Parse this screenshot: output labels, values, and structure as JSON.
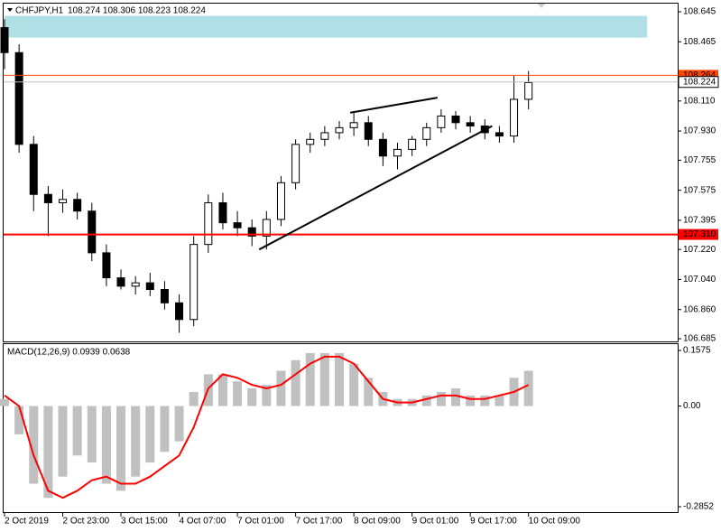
{
  "chart_data": [
    {
      "type": "candlestick",
      "title": "CHFJPY,H1",
      "subtitle": "108.274 108.306 108.223 108.224",
      "x": [
        0,
        4,
        8,
        12,
        16,
        20,
        24,
        28,
        32,
        36,
        40,
        44,
        48,
        52,
        56,
        60,
        64,
        68,
        72,
        76,
        80,
        84,
        88,
        92,
        96,
        100,
        104,
        108,
        112,
        116,
        120,
        124,
        128,
        132,
        136,
        140,
        144
      ],
      "open": [
        108.55,
        108.4,
        107.85,
        107.55,
        107.5,
        107.52,
        107.45,
        107.2,
        107.05,
        107.0,
        107.02,
        106.98,
        106.9,
        106.8,
        107.25,
        107.5,
        107.38,
        107.35,
        107.3,
        107.4,
        107.62,
        107.85,
        107.88,
        107.92,
        107.95,
        107.98,
        107.88,
        107.78,
        107.82,
        107.88,
        107.95,
        108.02,
        107.98,
        107.96,
        107.92,
        107.9,
        108.12
      ],
      "high": [
        108.6,
        108.45,
        107.9,
        107.6,
        107.58,
        107.56,
        107.5,
        107.25,
        107.1,
        107.06,
        107.08,
        107.03,
        106.95,
        107.3,
        107.55,
        107.56,
        107.45,
        107.4,
        107.45,
        107.66,
        107.88,
        107.92,
        107.96,
        107.99,
        108.04,
        108.02,
        107.92,
        107.86,
        107.9,
        107.98,
        108.06,
        108.05,
        108.02,
        108.0,
        107.96,
        108.26,
        108.29
      ],
      "low": [
        108.3,
        107.8,
        107.45,
        107.3,
        107.44,
        107.4,
        107.15,
        107.0,
        106.98,
        106.95,
        106.94,
        106.86,
        106.72,
        106.76,
        107.2,
        107.34,
        107.3,
        107.24,
        107.22,
        107.36,
        107.58,
        107.8,
        107.84,
        107.88,
        107.9,
        107.84,
        107.72,
        107.7,
        107.78,
        107.84,
        107.92,
        107.94,
        107.92,
        107.88,
        107.86,
        107.86,
        108.06
      ],
      "close": [
        108.4,
        107.85,
        107.55,
        107.5,
        107.52,
        107.45,
        107.2,
        107.05,
        107.0,
        107.02,
        106.98,
        106.9,
        106.8,
        107.25,
        107.5,
        107.38,
        107.35,
        107.3,
        107.4,
        107.62,
        107.85,
        107.88,
        107.92,
        107.95,
        107.98,
        107.88,
        107.78,
        107.82,
        107.88,
        107.95,
        108.02,
        107.98,
        107.96,
        107.92,
        107.9,
        108.12,
        108.22
      ],
      "xlim": [
        -0.25,
        185
      ],
      "ylim": [
        106.685,
        108.645
      ],
      "yticks": [
        108.645,
        108.465,
        {
          "value": 108.11,
          "label": "108.110"
        },
        {
          "value": 107.93,
          "label": "107.930"
        },
        107.755,
        107.575,
        107.395,
        {
          "value": 107.22,
          "label": "107.220"
        },
        {
          "value": 107.04,
          "label": "107.040"
        },
        {
          "value": 106.86,
          "label": "106.860"
        },
        106.685
      ],
      "zone": [
        108.49,
        108.62
      ],
      "levels": [
        {
          "value": 107.31,
          "label": "107.310",
          "color": "#ff0000"
        },
        {
          "value": 108.264,
          "label": "108.264",
          "color": "#ff4500"
        }
      ],
      "last": {
        "value": 108.224,
        "label": "108.224"
      },
      "trendlines": [
        {
          "x": [
            70,
            134
          ],
          "y": [
            107.22,
            107.96
          ]
        },
        {
          "x": [
            95,
            119
          ],
          "y": [
            108.04,
            108.13
          ]
        }
      ]
    },
    {
      "type": "macd",
      "title": "MACD(12,26,9) 0.0939 0.0638",
      "x": [
        0,
        4,
        8,
        12,
        16,
        20,
        24,
        28,
        32,
        36,
        40,
        44,
        48,
        52,
        56,
        60,
        64,
        68,
        72,
        76,
        80,
        84,
        88,
        92,
        96,
        100,
        104,
        108,
        112,
        116,
        120,
        124,
        128,
        132,
        136,
        140,
        144
      ],
      "values": [
        0.02,
        -0.08,
        -0.22,
        -0.26,
        -0.2,
        -0.14,
        -0.16,
        -0.22,
        -0.24,
        -0.2,
        -0.16,
        -0.13,
        -0.1,
        0.04,
        0.09,
        0.09,
        0.07,
        0.05,
        0.06,
        0.1,
        0.13,
        0.15,
        0.15,
        0.15,
        0.12,
        0.08,
        0.04,
        0.02,
        0.02,
        0.03,
        0.04,
        0.05,
        0.03,
        0.03,
        0.03,
        0.08,
        0.1
      ],
      "color": "#c0c0c0",
      "signal": [
        0.03,
        0.0,
        -0.14,
        -0.24,
        -0.26,
        -0.24,
        -0.21,
        -0.2,
        -0.22,
        -0.22,
        -0.2,
        -0.17,
        -0.14,
        -0.06,
        0.05,
        0.09,
        0.08,
        0.06,
        0.05,
        0.06,
        0.09,
        0.12,
        0.14,
        0.14,
        0.12,
        0.07,
        0.02,
        0.01,
        0.01,
        0.02,
        0.03,
        0.03,
        0.02,
        0.02,
        0.03,
        0.04,
        0.06
      ],
      "signal_color": "#ff0000",
      "xlim": [
        -0.25,
        185
      ],
      "ylim": [
        -0.2852,
        0.1575
      ],
      "yticks": [
        0.1575,
        {
          "value": 0,
          "label": "0.00"
        },
        -0.2852
      ],
      "xticks": [
        {
          "value": 0,
          "label": "2 Oct 2019"
        },
        {
          "value": 16,
          "label": "2 Oct 23:00"
        },
        {
          "value": 32,
          "label": "3 Oct 15:00"
        },
        {
          "value": 48,
          "label": "4 Oct 07:00"
        },
        {
          "value": 64,
          "label": "7 Oct 01:00"
        },
        {
          "value": 80,
          "label": "7 Oct 17:00"
        },
        {
          "value": 96,
          "label": "8 Oct 09:00"
        },
        {
          "value": 112,
          "label": "9 Oct 01:00"
        },
        {
          "value": 128,
          "label": "9 Oct 17:00"
        },
        {
          "value": 144,
          "label": "10 Oct 09:00"
        }
      ]
    }
  ]
}
